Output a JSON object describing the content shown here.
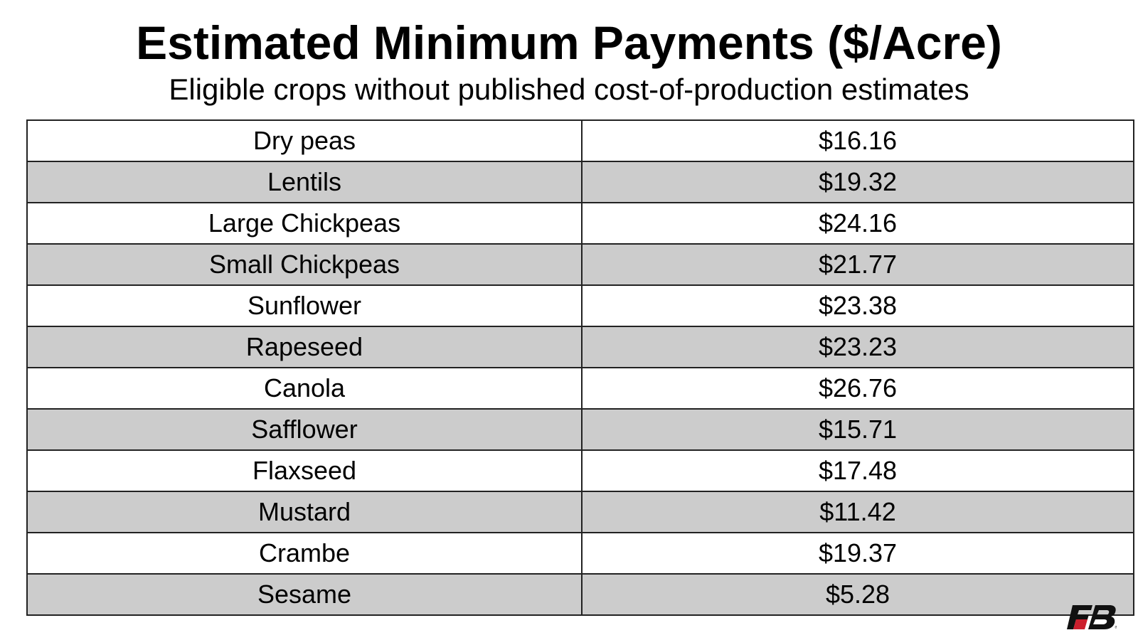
{
  "chart_data": {
    "type": "table",
    "title": "Estimated Minimum Payments ($/Acre)",
    "subtitle": "Eligible crops without published cost-of-production estimates",
    "rows": [
      {
        "crop": "Dry peas",
        "payment": "$16.16"
      },
      {
        "crop": "Lentils",
        "payment": "$19.32"
      },
      {
        "crop": "Large Chickpeas",
        "payment": "$24.16"
      },
      {
        "crop": "Small Chickpeas",
        "payment": "$21.77"
      },
      {
        "crop": "Sunflower",
        "payment": "$23.38"
      },
      {
        "crop": "Rapeseed",
        "payment": "$23.23"
      },
      {
        "crop": "Canola",
        "payment": "$26.76"
      },
      {
        "crop": "Safflower",
        "payment": "$15.71"
      },
      {
        "crop": "Flaxseed",
        "payment": "$17.48"
      },
      {
        "crop": "Mustard",
        "payment": "$11.42"
      },
      {
        "crop": "Crambe",
        "payment": "$19.37"
      },
      {
        "crop": "Sesame",
        "payment": "$5.28"
      }
    ]
  },
  "colors": {
    "row_stripe": "#cccccc",
    "row_plain": "#ffffff",
    "border": "#222222",
    "logo_black": "#111111",
    "logo_red": "#cc1f2d"
  },
  "logo": {
    "icon": "fb-logo-icon",
    "text": "FB"
  }
}
